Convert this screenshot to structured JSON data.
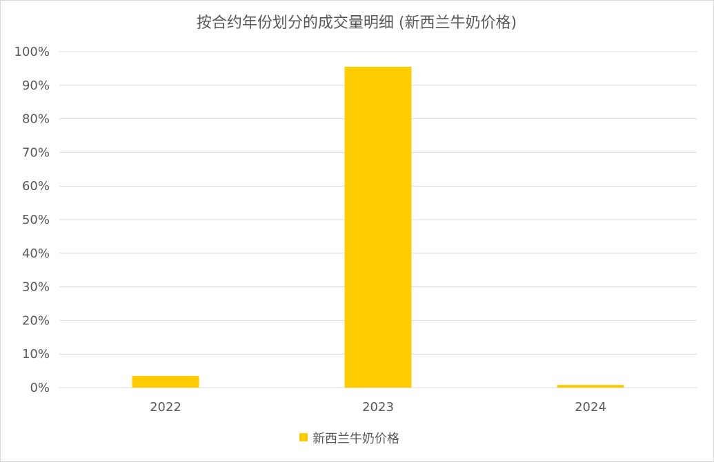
{
  "chart_data": {
    "type": "bar",
    "title": "按合约年份划分的成交量明细 (新西兰牛奶价格)",
    "xlabel": "",
    "ylabel": "",
    "categories": [
      "2022",
      "2023",
      "2024"
    ],
    "series": [
      {
        "name": "新西兰牛奶价格",
        "values": [
          3.5,
          95.5,
          0.8
        ],
        "color": "#FFCC00"
      }
    ],
    "ylim": [
      0,
      100
    ],
    "y_ticks": [
      0,
      10,
      20,
      30,
      40,
      50,
      60,
      70,
      80,
      90,
      100
    ],
    "y_tick_suffix": "%",
    "y_tick_labels": [
      "0%",
      "10%",
      "20%",
      "30%",
      "40%",
      "50%",
      "60%",
      "70%",
      "80%",
      "90%",
      "100%"
    ],
    "grid": true,
    "legend_position": "bottom"
  }
}
